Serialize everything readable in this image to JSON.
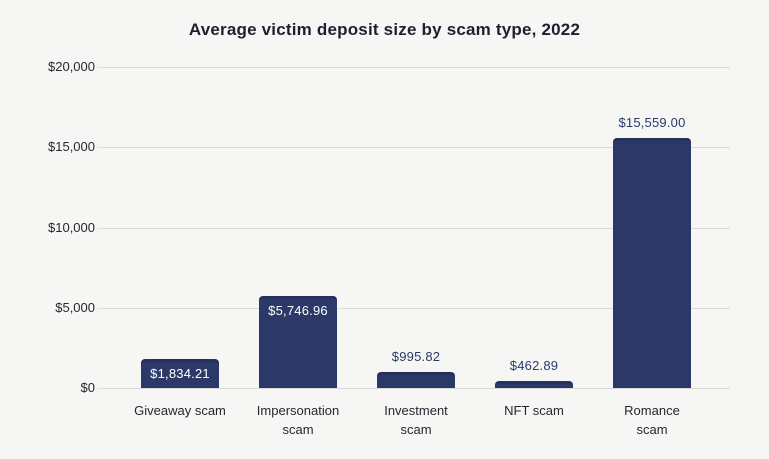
{
  "page": {
    "background": "#f6f6f4"
  },
  "chart_data": {
    "type": "bar",
    "title": "Average victim deposit size by scam type, 2022",
    "categories": [
      "Giveaway scam",
      "Impersonation scam",
      "Investment scam",
      "NFT scam",
      "Romance scam"
    ],
    "category_lines": [
      [
        "Giveaway scam"
      ],
      [
        "Impersonation",
        "scam"
      ],
      [
        "Investment",
        "scam"
      ],
      [
        "NFT scam"
      ],
      [
        "Romance",
        "scam"
      ]
    ],
    "values": [
      1834.21,
      5746.96,
      995.82,
      462.89,
      15559.0
    ],
    "bar_labels": [
      {
        "text": "$1,834.21",
        "position": "inside"
      },
      {
        "text": "$5,746.96",
        "position": "inside"
      },
      {
        "text": "$995.82",
        "position": "above"
      },
      {
        "text": "$462.89",
        "position": "above"
      },
      {
        "text": "$15,559.00",
        "position": "above"
      }
    ],
    "xlabel": "",
    "ylabel": "",
    "ylim": [
      0,
      20000
    ],
    "yticks": [
      {
        "value": 0,
        "label": "$0"
      },
      {
        "value": 5000,
        "label": "$5,000"
      },
      {
        "value": 10000,
        "label": "$10,000"
      },
      {
        "value": 15000,
        "label": "$15,000"
      },
      {
        "value": 20000,
        "label": "$20,000"
      }
    ],
    "grid": true,
    "legend": false,
    "colors": {
      "bar": "#2c3968",
      "bar_label_inside": "#ffffff",
      "bar_label_above": "#2c3968",
      "gridline": "#dbdbd9",
      "title": "#1e2030",
      "axis_text": "#26272f",
      "background": "#f6f6f4"
    }
  }
}
